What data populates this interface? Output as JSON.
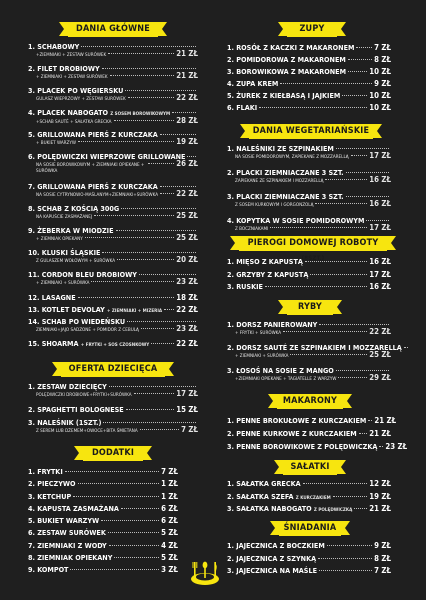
{
  "dania_glowne": {
    "title": "Dania Główne",
    "items": [
      {
        "name": "1. Schabowy",
        "sub": "+ziemniaki + zestaw surówek",
        "price": "21 zł"
      },
      {
        "name": "2. Filet drobiowy",
        "sub": "+ ziemniaki + zestaw surówek",
        "price": "21 zł"
      },
      {
        "name": "3. Placek po węgiersku",
        "sub": "gulasz wieprzowy + zestaw surówek",
        "price": "22 zł"
      },
      {
        "name": "4. Placek nabogato",
        "name_small": "z sosem borowikowym",
        "sub": "+schab sauté + sałatka grecka",
        "price": "28 zł"
      },
      {
        "name": "5. Grillowana pierś z kurczaka",
        "sub": "+ bukiet warzyw",
        "price": "19 zł"
      },
      {
        "name": "6. Polędwiczki wieprzowe grillowane",
        "sub": "na sosie borowikowym + ziemniaki opiekane + surówka",
        "price": "26 zł"
      },
      {
        "name": "7. Grillowana pierś z kurczaka",
        "sub": "na sosie cytrynowo-maślanym+ziemniaki+surówka",
        "price": "22 zł"
      },
      {
        "name": "8. Schab z kością 300g",
        "sub": "na kapuście zasmażanej",
        "price": "25 zł"
      },
      {
        "name": "9. Żeberka w miodzie",
        "sub": "+ ziemniak opiekany",
        "price": "25 zł"
      },
      {
        "name": "10. Kluski śląskie",
        "sub": "z gulaszem wołowym + surówka",
        "price": "20 zł"
      },
      {
        "name": "11. Cordon bleu drobiowy",
        "sub": "+ ziemniaki + surówka",
        "price": "23 zł"
      },
      {
        "name": "12. Lasagne",
        "sub": "",
        "price": "18 zł"
      },
      {
        "name": "13. Kotlet devolay",
        "name_small": "+ ziemniaki + mizeria",
        "sub": "",
        "price": "22 zł"
      },
      {
        "name": "14. Schab po wiedeńsku",
        "sub": "ziemniaki+jajo sadzone + pomidor z cebulą",
        "price": "23 zł"
      },
      {
        "name": "15. Shoarma",
        "name_small": "+ frytki + sos czosnkowy",
        "sub": "",
        "price": "22 zł"
      }
    ]
  },
  "oferta_dziecieca": {
    "title": "Oferta dziecięca",
    "items": [
      {
        "name": "1. Zestaw dziecięcy",
        "sub": "polędwiczki drobiowe+frytki+surówka",
        "price": "17 zł"
      },
      {
        "name": "2. Spaghetti bolognese",
        "sub": "",
        "price": "15 zł"
      },
      {
        "name": "3. Naleśnik (1szt.)",
        "sub": "z serem lub dżemem+owoce+bita śmietana",
        "price": "7 zł"
      }
    ]
  },
  "dodatki": {
    "title": "Dodatki",
    "items": [
      {
        "name": "1. Frytki",
        "price": "7 zł"
      },
      {
        "name": "2. Pieczywo",
        "price": "1 zł"
      },
      {
        "name": "3. Ketchup",
        "price": "1 zł"
      },
      {
        "name": "4. Kapusta zasmażana",
        "price": "6 zł"
      },
      {
        "name": "5. Bukiet warzyw",
        "price": "6 zł"
      },
      {
        "name": "6. Zestaw surówek",
        "price": "5 zł"
      },
      {
        "name": "7. Ziemniaki z wody",
        "price": "4 zł"
      },
      {
        "name": "8. Ziemniak opiekany",
        "price": "5 zł"
      },
      {
        "name": "9. Kompot",
        "price": "3 zł"
      }
    ]
  },
  "zupy": {
    "title": "Zupy",
    "items": [
      {
        "name": "1. Rosół z kaczki z makaronem",
        "price": "7 zł"
      },
      {
        "name": "2. Pomidorowa z makaronem",
        "price": "8 zł"
      },
      {
        "name": "3. Borowikowa z makaronem",
        "price": "10 zł"
      },
      {
        "name": "4. Zupa krem",
        "price": "9 zł"
      },
      {
        "name": "5. Żurek z kiełbasą i jajkiem",
        "price": "10 zł"
      },
      {
        "name": "6. Flaki",
        "price": "10 zł"
      }
    ]
  },
  "dania_wegetarianskie": {
    "title": "Dania wegetariańskie",
    "items": [
      {
        "name": "1. Naleśniki ze szpinakiem",
        "sub": "na sosie pomidorowym, zapiekane z mozzarellą",
        "price": "17 zł"
      },
      {
        "name": "2. Placki ziemniaczane 3 szt.",
        "sub": "zapiekane ze szpinakiem i mozzarellą",
        "price": "16 zł"
      },
      {
        "name": "3. Placki ziemniaczane 3 szt.",
        "sub": "z sosem kurkowym i gorgonzolą",
        "price": "16 zł"
      },
      {
        "name": "4. Kopytka w sosie pomidorowym",
        "sub": "z boczniakami",
        "price": "17 zł"
      }
    ]
  },
  "pierogi": {
    "title": "Pierogi domowej roboty",
    "tag": "(8szt.)",
    "items": [
      {
        "name": "1. Mięso z kapustą",
        "price": "16 zł"
      },
      {
        "name": "2. Grzyby z kapustą",
        "price": "17 zł"
      },
      {
        "name": "3. Ruskie",
        "price": "16 zł"
      }
    ]
  },
  "ryby": {
    "title": "Ryby",
    "items": [
      {
        "name": "1. Dorsz panierowany",
        "sub": "+ frytki + surówka",
        "price": "22 zł"
      },
      {
        "name": "2. Dorsz sauté ze szpinakiem i mozzarellą",
        "sub": "+ ziemniaki + surówka",
        "price": "25 zł"
      },
      {
        "name": "3. Łosoś na sosie z mango",
        "sub": "+ziemniaki opiekane + tagiatelle z warzyw",
        "price": "29 zł"
      }
    ]
  },
  "makarony": {
    "title": "Makarony",
    "items": [
      {
        "name": "1. Penne brokułowe z kurczakiem",
        "price": "21 zł"
      },
      {
        "name": "2. Penne kurkowe z kurczakiem",
        "price": "21 zł"
      },
      {
        "name": "3. Penne borowikowe z polędwiczką",
        "price": "23 zł"
      }
    ]
  },
  "salatki": {
    "title": "Sałatki",
    "items": [
      {
        "name": "1. Sałatka grecka",
        "name_small": "",
        "price": "12 zł"
      },
      {
        "name": "2. Sałatka szefa",
        "name_small": "z kurczakiem",
        "price": "19 zł"
      },
      {
        "name": "3. Sałatka nabogato",
        "name_small": "z polędwiczką",
        "price": "21 zł"
      }
    ]
  },
  "sniadania": {
    "title": "Śniadania",
    "items": [
      {
        "name": "1. Jajecznica z boczkiem",
        "price": "9 zł"
      },
      {
        "name": "2. Jajecznica z szynką",
        "price": "8 zł"
      },
      {
        "name": "3. Jajecznica na maśle",
        "price": "7 zł"
      }
    ]
  },
  "decor": {
    "icon": "cutlery-plate-icon",
    "accent": "#f7e50f",
    "background": "#1f1f1f"
  }
}
